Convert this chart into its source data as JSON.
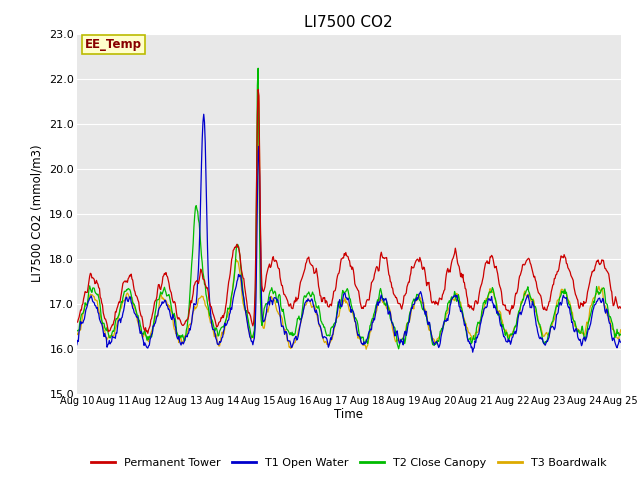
{
  "title": "LI7500 CO2",
  "ylabel": "LI7500 CO2 (mmol/m3)",
  "xlabel": "Time",
  "xlim": [
    0,
    360
  ],
  "ylim": [
    15.0,
    23.0
  ],
  "yticks": [
    15.0,
    16.0,
    17.0,
    18.0,
    19.0,
    20.0,
    21.0,
    22.0,
    23.0
  ],
  "xtick_labels": [
    "Aug 10",
    "Aug 11",
    "Aug 12",
    "Aug 13",
    "Aug 14",
    "Aug 15",
    "Aug 16",
    "Aug 17",
    "Aug 18",
    "Aug 19",
    "Aug 20",
    "Aug 21",
    "Aug 22",
    "Aug 23",
    "Aug 24",
    "Aug 25"
  ],
  "xtick_positions": [
    0,
    24,
    48,
    72,
    96,
    120,
    144,
    168,
    192,
    216,
    240,
    264,
    288,
    312,
    336,
    360
  ],
  "colors": {
    "permanent_tower": "#cc0000",
    "t1_open_water": "#0000cc",
    "t2_close_canopy": "#00bb00",
    "t3_boardwalk": "#ddaa00"
  },
  "background_color": "#e8e8e8",
  "annotation_text": "EE_Temp",
  "annotation_box_color": "#ffffcc",
  "annotation_text_color": "#880000",
  "annotation_box_edgecolor": "#bbbb00",
  "legend_labels": [
    "Permanent Tower",
    "T1 Open Water",
    "T2 Close Canopy",
    "T3 Boardwalk"
  ]
}
